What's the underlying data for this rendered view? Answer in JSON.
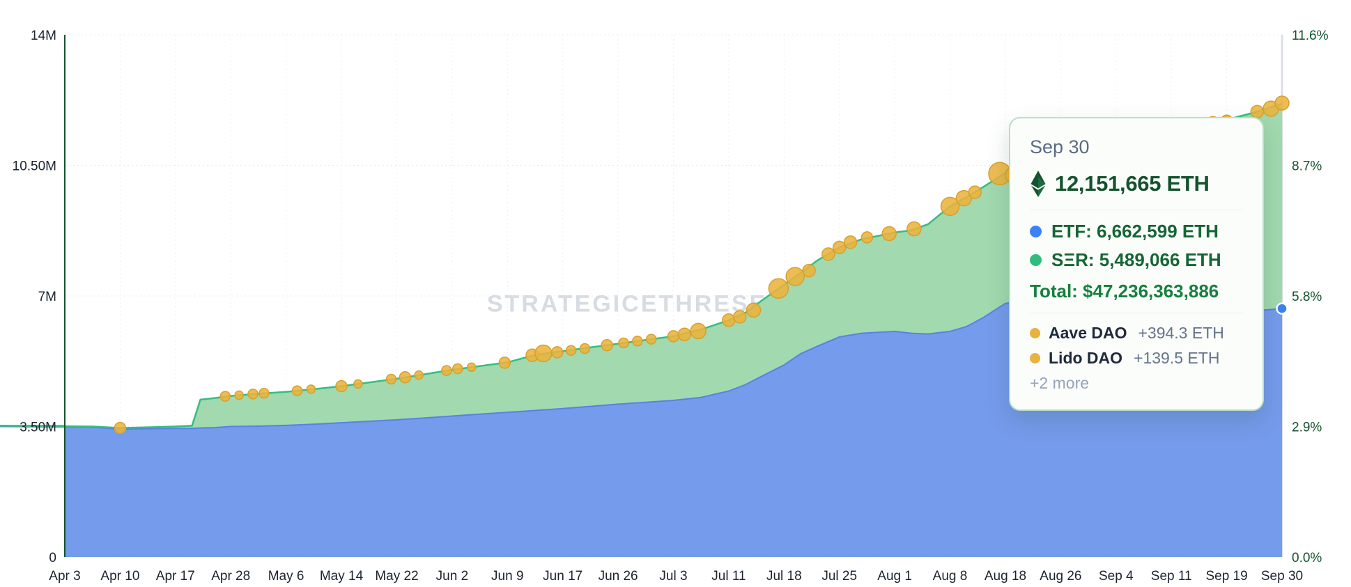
{
  "watermark": "STRATEGICETHRESERVE.XYZ",
  "colors": {
    "etf_blue": "#3b82f6",
    "ser_green": "#2ebd7b",
    "event_gold": "#e7b23e",
    "tooltip_border": "#b9dfc6",
    "dark_green_text": "#14532d",
    "axis_left_line": "#14532d"
  },
  "tooltip": {
    "date": "Sep 30",
    "total_eth": "12,151,665 ETH",
    "etf_row": "ETF: 6,662,599 ETH",
    "ser_row": "SΞR: 5,489,066 ETH",
    "total_usd": "Total: $47,236,363,886",
    "events": [
      {
        "name": "Aave DAO",
        "amount": "+394.3 ETH"
      },
      {
        "name": "Lido DAO",
        "amount": "+139.5 ETH"
      }
    ],
    "more_label": "+2 more"
  },
  "chart_data": {
    "type": "area",
    "stacked": true,
    "title": "",
    "x_tick_labels": [
      "Apr 3",
      "Apr 10",
      "Apr 17",
      "Apr 28",
      "May 6",
      "May 14",
      "May 22",
      "Jun 2",
      "Jun 9",
      "Jun 17",
      "Jun 26",
      "Jul 3",
      "Jul 11",
      "Jul 18",
      "Jul 25",
      "Aug 1",
      "Aug 8",
      "Aug 18",
      "Aug 26",
      "Sep 4",
      "Sep 11",
      "Sep 19",
      "Sep 30"
    ],
    "y_left": {
      "unit": "ETH (millions)",
      "tick_labels": [
        "0",
        "3.50M",
        "7M",
        "10.50M",
        "14M"
      ],
      "tick_values_m": [
        0,
        3.5,
        7,
        10.5,
        14
      ],
      "max_m": 14
    },
    "y_right": {
      "unit": "% of ETH supply",
      "tick_labels": [
        "0.0%",
        "2.9%",
        "5.8%",
        "8.7%",
        "11.6%"
      ],
      "max_pct": 11.6
    },
    "grid": true,
    "legend_position": "tooltip",
    "series": [
      {
        "name": "ETF",
        "fill": "#759bec",
        "line": "#5a82e0"
      },
      {
        "name": "SΞR",
        "fill": "#a2d9af",
        "line": "#35bd80"
      }
    ],
    "points_format": [
      "x_tick_position",
      "etf_millions",
      "total_millions"
    ],
    "points": [
      [
        0,
        3.5,
        3.52
      ],
      [
        0.5,
        3.48,
        3.5
      ],
      [
        1,
        3.43,
        3.46
      ],
      [
        1.5,
        3.44,
        3.48
      ],
      [
        2,
        3.45,
        3.5
      ],
      [
        2.3,
        3.45,
        3.52
      ],
      [
        2.45,
        3.46,
        4.22
      ],
      [
        2.7,
        3.47,
        4.26
      ],
      [
        3,
        3.5,
        4.32
      ],
      [
        3.5,
        3.51,
        4.38
      ],
      [
        4,
        3.53,
        4.43
      ],
      [
        4.5,
        3.56,
        4.5
      ],
      [
        5,
        3.6,
        4.58
      ],
      [
        5.5,
        3.64,
        4.68
      ],
      [
        6,
        3.68,
        4.78
      ],
      [
        6.5,
        3.73,
        4.9
      ],
      [
        7,
        3.78,
        5.02
      ],
      [
        7.5,
        3.83,
        5.12
      ],
      [
        8,
        3.88,
        5.22
      ],
      [
        8.5,
        3.93,
        5.42
      ],
      [
        9,
        3.98,
        5.52
      ],
      [
        9.5,
        4.04,
        5.62
      ],
      [
        10,
        4.1,
        5.72
      ],
      [
        10.5,
        4.15,
        5.82
      ],
      [
        11,
        4.2,
        5.92
      ],
      [
        11.5,
        4.28,
        6.1
      ],
      [
        12,
        4.45,
        6.35
      ],
      [
        12.3,
        4.62,
        6.55
      ],
      [
        12.6,
        4.85,
        6.88
      ],
      [
        13,
        5.15,
        7.3
      ],
      [
        13.3,
        5.45,
        7.62
      ],
      [
        13.6,
        5.65,
        7.95
      ],
      [
        14,
        5.9,
        8.3
      ],
      [
        14.4,
        6.0,
        8.52
      ],
      [
        15,
        6.05,
        8.7
      ],
      [
        15.3,
        6.0,
        8.76
      ],
      [
        15.6,
        5.98,
        8.92
      ],
      [
        16,
        6.05,
        9.4
      ],
      [
        16.3,
        6.18,
        9.65
      ],
      [
        16.6,
        6.42,
        9.92
      ],
      [
        17,
        6.8,
        10.3
      ],
      [
        17.25,
        6.85,
        10.26
      ],
      [
        17.5,
        6.72,
        10.45
      ],
      [
        18,
        6.55,
        10.65
      ],
      [
        18.5,
        6.48,
        10.85
      ],
      [
        19,
        6.45,
        11.0
      ],
      [
        19.5,
        6.43,
        11.15
      ],
      [
        20,
        6.45,
        11.35
      ],
      [
        20.5,
        6.5,
        11.55
      ],
      [
        21,
        6.55,
        11.72
      ],
      [
        21.5,
        6.6,
        11.92
      ],
      [
        22,
        6.66,
        12.15
      ]
    ],
    "markers_format": [
      "x_tick_position",
      "total_millions",
      "radius_px"
    ],
    "markers": [
      [
        1,
        3.46,
        8
      ],
      [
        2.9,
        4.31,
        7
      ],
      [
        3.15,
        4.34,
        6
      ],
      [
        3.4,
        4.37,
        7
      ],
      [
        3.6,
        4.39,
        7
      ],
      [
        4.2,
        4.46,
        7
      ],
      [
        4.45,
        4.5,
        6
      ],
      [
        5.0,
        4.58,
        8
      ],
      [
        5.3,
        4.64,
        6
      ],
      [
        5.9,
        4.77,
        7
      ],
      [
        6.15,
        4.82,
        8
      ],
      [
        6.4,
        4.88,
        6
      ],
      [
        6.9,
        5.0,
        7
      ],
      [
        7.1,
        5.05,
        7
      ],
      [
        7.35,
        5.09,
        6
      ],
      [
        7.95,
        5.21,
        8
      ],
      [
        8.45,
        5.41,
        9
      ],
      [
        8.65,
        5.46,
        12
      ],
      [
        8.9,
        5.49,
        8
      ],
      [
        9.15,
        5.54,
        7
      ],
      [
        9.4,
        5.59,
        7
      ],
      [
        9.8,
        5.68,
        8
      ],
      [
        10.1,
        5.74,
        7
      ],
      [
        10.35,
        5.79,
        7
      ],
      [
        10.6,
        5.84,
        7
      ],
      [
        11.0,
        5.92,
        8
      ],
      [
        11.2,
        5.97,
        9
      ],
      [
        11.45,
        6.06,
        11
      ],
      [
        12.0,
        6.35,
        9
      ],
      [
        12.2,
        6.44,
        9
      ],
      [
        12.45,
        6.62,
        10
      ],
      [
        12.9,
        7.2,
        14
      ],
      [
        13.2,
        7.52,
        13
      ],
      [
        13.45,
        7.68,
        9
      ],
      [
        13.8,
        8.12,
        9
      ],
      [
        14.0,
        8.3,
        9
      ],
      [
        14.2,
        8.44,
        9
      ],
      [
        14.5,
        8.57,
        8
      ],
      [
        14.9,
        8.67,
        10
      ],
      [
        15.35,
        8.8,
        10
      ],
      [
        16.0,
        9.4,
        13
      ],
      [
        16.25,
        9.62,
        11
      ],
      [
        16.45,
        9.78,
        9
      ],
      [
        16.9,
        10.28,
        16
      ],
      [
        17.15,
        10.24,
        12
      ],
      [
        20.2,
        11.42,
        7
      ],
      [
        20.5,
        11.52,
        7
      ],
      [
        20.75,
        11.62,
        10
      ],
      [
        21.0,
        11.7,
        8
      ],
      [
        21.55,
        11.94,
        9
      ],
      [
        21.8,
        12.02,
        11
      ],
      [
        22.0,
        12.17,
        10
      ]
    ],
    "marker_color": "#eab33c",
    "marker_stroke": "#d7a02e",
    "end_dot": {
      "x": 22,
      "value_m": 6.662599,
      "color": "#3b82f6"
    }
  }
}
